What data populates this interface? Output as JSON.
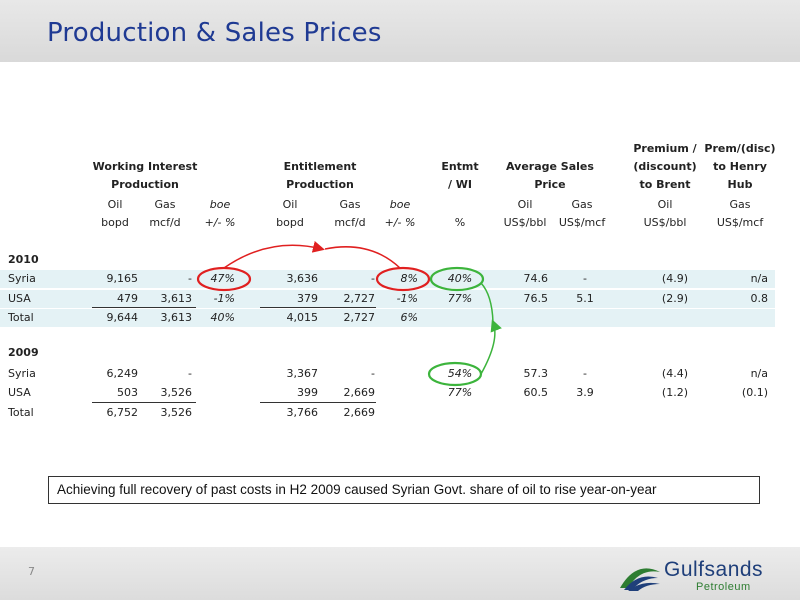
{
  "title": "Production & Sales Prices",
  "page_number": "7",
  "logo": {
    "name": "Gulfsands",
    "sub": "Petroleum"
  },
  "headers": {
    "working_interest": [
      "Working Interest",
      "Production"
    ],
    "entitlement": [
      "Entitlement",
      "Production"
    ],
    "entmt": [
      "Entmt",
      "/ WI"
    ],
    "avg_sales": [
      "Average Sales",
      "Price"
    ],
    "premium": [
      "Premium /",
      "(discount)",
      "to Brent"
    ],
    "prem_disc": [
      "Prem/(disc)",
      "to Henry",
      "Hub"
    ],
    "sub": {
      "wi_oil": "Oil",
      "wi_gas": "Gas",
      "wi_boe": "boe",
      "en_oil": "Oil",
      "en_gas": "Gas",
      "en_boe": "boe",
      "as_oil": "Oil",
      "as_gas": "Gas",
      "pb_oil": "Oil",
      "ph_gas": "Gas"
    },
    "units": {
      "wi_oil": "bopd",
      "wi_gas": "mcf/d",
      "wi_boe": "+/- %",
      "en_oil": "bopd",
      "en_gas": "mcf/d",
      "en_boe": "+/- %",
      "entmt": "%",
      "as_oil": "US$/bbl",
      "as_gas": "US$/mcf",
      "pb_oil": "US$/bbl",
      "ph_gas": "US$/mcf"
    }
  },
  "sections": [
    {
      "year": "2010",
      "rows": [
        {
          "label": "Syria",
          "wi_oil": "9,165",
          "wi_gas": "-",
          "wi_boe": "47%",
          "en_oil": "3,636",
          "en_gas": "-",
          "en_boe": "8%",
          "entmt": "40%",
          "as_oil": "74.6",
          "as_gas": "-",
          "prem_brent": "(4.9)",
          "prem_hub": "n/a"
        },
        {
          "label": "USA",
          "wi_oil": "479",
          "wi_gas": "3,613",
          "wi_boe": "-1%",
          "en_oil": "379",
          "en_gas": "2,727",
          "en_boe": "-1%",
          "entmt": "77%",
          "as_oil": "76.5",
          "as_gas": "5.1",
          "prem_brent": "(2.9)",
          "prem_hub": "0.8"
        },
        {
          "label": "Total",
          "wi_oil": "9,644",
          "wi_gas": "3,613",
          "wi_boe": "40%",
          "en_oil": "4,015",
          "en_gas": "2,727",
          "en_boe": "6%",
          "entmt": "",
          "as_oil": "",
          "as_gas": "",
          "prem_brent": "",
          "prem_hub": ""
        }
      ]
    },
    {
      "year": "2009",
      "rows": [
        {
          "label": "Syria",
          "wi_oil": "6,249",
          "wi_gas": "-",
          "wi_boe": "",
          "en_oil": "3,367",
          "en_gas": "-",
          "en_boe": "",
          "entmt": "54%",
          "as_oil": "57.3",
          "as_gas": "-",
          "prem_brent": "(4.4)",
          "prem_hub": "n/a"
        },
        {
          "label": "USA",
          "wi_oil": "503",
          "wi_gas": "3,526",
          "wi_boe": "",
          "en_oil": "399",
          "en_gas": "2,669",
          "en_boe": "",
          "entmt": "77%",
          "as_oil": "60.5",
          "as_gas": "3.9",
          "prem_brent": "(1.2)",
          "prem_hub": "(0.1)"
        },
        {
          "label": "Total",
          "wi_oil": "6,752",
          "wi_gas": "3,526",
          "wi_boe": "",
          "en_oil": "3,766",
          "en_gas": "2,669",
          "en_boe": "",
          "entmt": "",
          "as_oil": "",
          "as_gas": "",
          "prem_brent": "",
          "prem_hub": ""
        }
      ]
    }
  ],
  "note": "Achieving full recovery of past costs in H2 2009 caused Syrian Govt. share of oil to rise year-on-year",
  "colors": {
    "title": "#1f3a93",
    "band": "#e4f2f5",
    "red_marker": "#e02020",
    "green_marker": "#3cb43c"
  }
}
